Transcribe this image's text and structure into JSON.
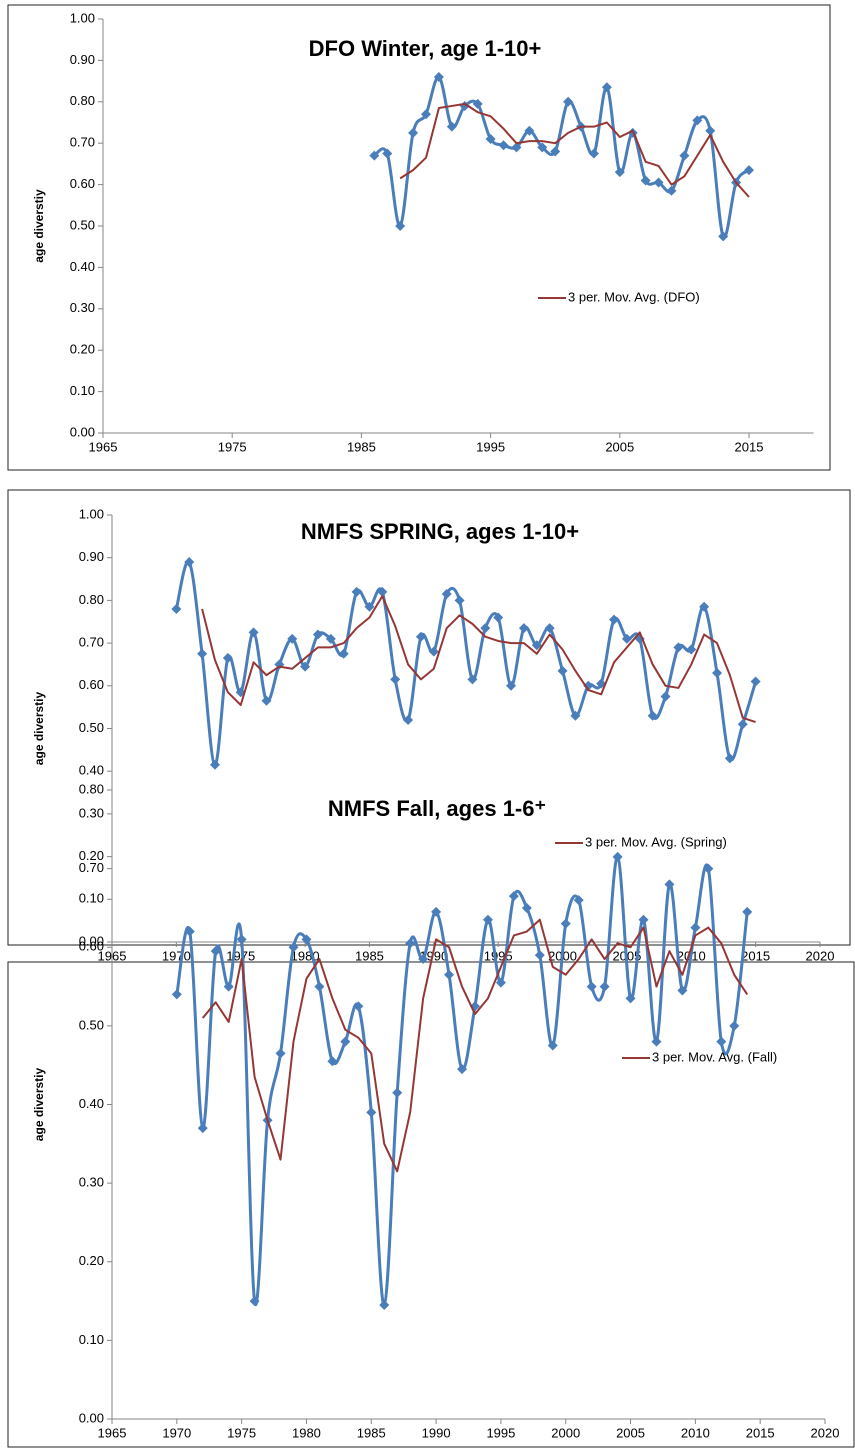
{
  "chart_data": [
    {
      "type": "line",
      "title": "DFO Winter, age 1-10+",
      "y_label": "age diverstiy",
      "x": [
        1986,
        1987,
        1988,
        1989,
        1990,
        1991,
        1992,
        1993,
        1994,
        1995,
        1996,
        1997,
        1998,
        1999,
        2000,
        2001,
        2002,
        2003,
        2004,
        2005,
        2006,
        2007,
        2008,
        2009,
        2010,
        2011,
        2012,
        2013,
        2014,
        2015
      ],
      "series": [
        {
          "color": "#4a7ebb",
          "marker": "diamond",
          "smooth": true,
          "values": [
            0.67,
            0.675,
            0.5,
            0.725,
            0.77,
            0.86,
            0.74,
            0.79,
            0.795,
            0.71,
            0.695,
            0.69,
            0.73,
            0.69,
            0.68,
            0.8,
            0.74,
            0.675,
            0.835,
            0.63,
            0.725,
            0.61,
            0.605,
            0.585,
            0.67,
            0.755,
            0.73,
            0.475,
            0.605,
            0.635
          ]
        },
        {
          "name": "3 per. Mov. Avg. (DFO)",
          "color": "#953735",
          "values": [
            null,
            null,
            0.615,
            0.635,
            0.665,
            0.785,
            0.79,
            0.795,
            0.775,
            0.765,
            0.735,
            0.7,
            0.705,
            0.705,
            0.7,
            0.725,
            0.74,
            0.74,
            0.75,
            0.715,
            0.73,
            0.655,
            0.645,
            0.6,
            0.62,
            0.67,
            0.72,
            0.655,
            0.605,
            0.57
          ]
        }
      ],
      "xlim": [
        1965,
        2020
      ],
      "xticks": [
        1965,
        1975,
        1985,
        1995,
        2005,
        2015
      ],
      "ylim": [
        0,
        1
      ],
      "yticks": [
        {
          "value": 0,
          "label": "0.00"
        },
        {
          "value": 0.1,
          "label": "0.10"
        },
        {
          "value": 0.2,
          "label": "0.20"
        },
        {
          "value": 0.3,
          "label": "0.30"
        },
        {
          "value": 0.4,
          "label": "0.40"
        },
        {
          "value": 0.5,
          "label": "0.50"
        },
        {
          "value": 0.6,
          "label": "0.60"
        },
        {
          "value": 0.7,
          "label": "0.70"
        },
        {
          "value": 0.8,
          "label": "0.80"
        },
        {
          "value": 0.9,
          "label": "0.90"
        },
        {
          "value": 1,
          "label": "1.00"
        }
      ],
      "grid": false,
      "legend": "right"
    },
    {
      "type": "line",
      "title": "NMFS SPRING, ages 1-10+",
      "y_label": "age diverstiy",
      "x": [
        1970,
        1971,
        1972,
        1973,
        1974,
        1975,
        1976,
        1977,
        1978,
        1979,
        1980,
        1981,
        1982,
        1983,
        1984,
        1985,
        1986,
        1987,
        1988,
        1989,
        1990,
        1991,
        1992,
        1993,
        1994,
        1995,
        1996,
        1997,
        1998,
        1999,
        2000,
        2001,
        2002,
        2003,
        2004,
        2005,
        2006,
        2007,
        2008,
        2009,
        2010,
        2011,
        2012,
        2013,
        2014,
        2015
      ],
      "series": [
        {
          "color": "#4a7ebb",
          "marker": "diamond",
          "smooth": true,
          "values": [
            0.78,
            0.89,
            0.675,
            0.415,
            0.665,
            0.585,
            0.725,
            0.565,
            0.65,
            0.71,
            0.645,
            0.72,
            0.71,
            0.675,
            0.82,
            0.785,
            0.82,
            0.615,
            0.52,
            0.715,
            0.68,
            0.815,
            0.8,
            0.615,
            0.735,
            0.76,
            0.6,
            0.735,
            0.695,
            0.735,
            0.635,
            0.53,
            0.6,
            0.605,
            0.755,
            0.71,
            0.71,
            0.53,
            0.575,
            0.69,
            0.685,
            0.785,
            0.63,
            0.43,
            0.51,
            0.61
          ]
        },
        {
          "name": "3 per. Mov. Avg. (Spring)",
          "color": "#953735",
          "values": [
            null,
            null,
            0.78,
            0.66,
            0.585,
            0.555,
            0.655,
            0.625,
            0.645,
            0.64,
            0.665,
            0.69,
            0.69,
            0.7,
            0.735,
            0.76,
            0.81,
            0.74,
            0.65,
            0.615,
            0.64,
            0.735,
            0.765,
            0.745,
            0.715,
            0.705,
            0.7,
            0.7,
            0.675,
            0.72,
            0.685,
            0.635,
            0.59,
            0.58,
            0.655,
            0.69,
            0.725,
            0.65,
            0.6,
            0.595,
            0.65,
            0.72,
            0.7,
            0.625,
            0.525,
            0.515
          ]
        }
      ],
      "xlim": [
        1965,
        2020
      ],
      "xticks": [
        1965,
        1970,
        1975,
        1980,
        1985,
        1990,
        1995,
        2000,
        2005,
        2010,
        2015,
        2020
      ],
      "ylim": [
        0,
        1
      ],
      "yticks": [
        {
          "value": 0,
          "label": "0.00"
        },
        {
          "value": 0.1,
          "label": "0.10"
        },
        {
          "value": 0.2,
          "label": "0.20"
        },
        {
          "value": 0.3,
          "label": "0.30"
        },
        {
          "value": 0.4,
          "label": "0.40"
        },
        {
          "value": 0.5,
          "label": "0.50"
        },
        {
          "value": 0.6,
          "label": "0.60"
        },
        {
          "value": 0.7,
          "label": "0.70"
        },
        {
          "value": 0.8,
          "label": "0.80"
        },
        {
          "value": 0.9,
          "label": "0.90"
        },
        {
          "value": 1,
          "label": "1.00"
        }
      ],
      "grid": false,
      "legend": "right"
    },
    {
      "type": "line",
      "title": "NMFS Fall, ages 1-6⁺",
      "y_label": "age diverstiy",
      "x": [
        1970,
        1971,
        1972,
        1973,
        1974,
        1975,
        1976,
        1977,
        1978,
        1979,
        1980,
        1981,
        1982,
        1983,
        1984,
        1985,
        1986,
        1987,
        1988,
        1989,
        1990,
        1991,
        1992,
        1993,
        1994,
        1995,
        1996,
        1997,
        1998,
        1999,
        2000,
        2001,
        2002,
        2003,
        2004,
        2005,
        2006,
        2007,
        2008,
        2009,
        2010,
        2011,
        2012,
        2013,
        2014
      ],
      "series": [
        {
          "color": "#4a7ebb",
          "marker": "diamond",
          "smooth": true,
          "values": [
            0.54,
            0.62,
            0.37,
            0.595,
            0.55,
            0.61,
            0.15,
            0.38,
            0.465,
            0.6,
            0.61,
            0.55,
            0.455,
            0.48,
            0.525,
            0.39,
            0.145,
            0.415,
            0.605,
            0.585,
            0.645,
            0.565,
            0.445,
            0.525,
            0.635,
            0.555,
            0.665,
            0.65,
            0.59,
            0.475,
            0.63,
            0.66,
            0.55,
            0.55,
            0.715,
            0.535,
            0.635,
            0.48,
            0.68,
            0.545,
            0.625,
            0.7,
            0.48,
            0.5,
            0.645
          ]
        },
        {
          "name": "3 per. Mov. Avg. (Fall)",
          "color": "#953735",
          "values": [
            null,
            null,
            0.51,
            0.53,
            0.505,
            0.585,
            0.435,
            0.38,
            0.33,
            0.48,
            0.56,
            0.585,
            0.535,
            0.495,
            0.485,
            0.465,
            0.35,
            0.315,
            0.39,
            0.535,
            0.61,
            0.6,
            0.55,
            0.515,
            0.535,
            0.575,
            0.615,
            0.62,
            0.635,
            0.575,
            0.565,
            0.585,
            0.61,
            0.585,
            0.605,
            0.6,
            0.625,
            0.55,
            0.595,
            0.565,
            0.615,
            0.625,
            0.605,
            0.565,
            0.54
          ]
        }
      ],
      "xlim": [
        1965,
        2020
      ],
      "xticks": [
        1965,
        1970,
        1975,
        1980,
        1985,
        1990,
        1995,
        2000,
        2005,
        2010,
        2015,
        2020
      ],
      "ylim": [
        0,
        0.8
      ],
      "yticks": [
        {
          "value": 0,
          "label": "0.00"
        },
        {
          "value": 0.1,
          "label": "0.10"
        },
        {
          "value": 0.2,
          "label": "0.20"
        },
        {
          "value": 0.3,
          "label": "0.30"
        },
        {
          "value": 0.4,
          "label": "0.40"
        },
        {
          "value": 0.5,
          "label": "0.50"
        },
        {
          "value": 0.6,
          "label": "0.60"
        },
        {
          "value": 0.7,
          "label": "0.70"
        },
        {
          "value": 0.8,
          "label": "0.80"
        }
      ],
      "grid": false,
      "legend": "right"
    }
  ]
}
